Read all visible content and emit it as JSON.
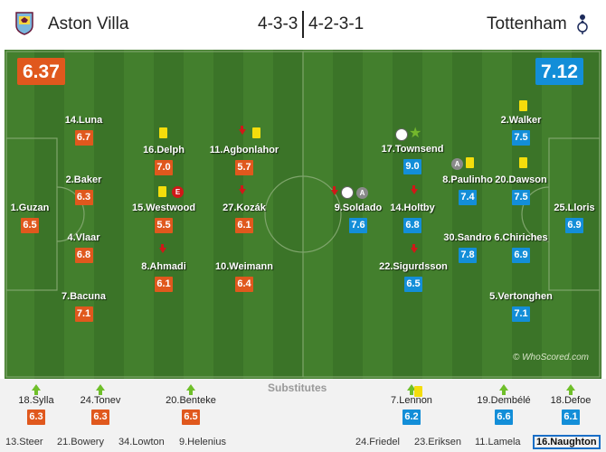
{
  "header": {
    "home_team": "Aston Villa",
    "away_team": "Tottenham",
    "home_formation": "4-3-3",
    "away_formation": "4-2-3-1"
  },
  "ratings": {
    "home": "6.37",
    "away": "7.12"
  },
  "colors": {
    "home": "#e0581d",
    "away": "#138ed8",
    "pitch": "#3f7a2a",
    "yellow_card": "#f4dd0c"
  },
  "watermark": "© WhoScored.com",
  "home_players": [
    {
      "name": "14.Luna",
      "rating": "6.7"
    },
    {
      "name": "2.Baker",
      "rating": "6.3"
    },
    {
      "name": "1.Guzan",
      "rating": "6.5"
    },
    {
      "name": "4.Vlaar",
      "rating": "6.8"
    },
    {
      "name": "7.Bacuna",
      "rating": "7.1"
    },
    {
      "name": "16.Delph",
      "rating": "7.0"
    },
    {
      "name": "15.Westwood",
      "rating": "5.5"
    },
    {
      "name": "8.Ahmadi",
      "rating": "6.1"
    },
    {
      "name": "11.Agbonlahor",
      "rating": "5.7"
    },
    {
      "name": "27.Kozák",
      "rating": "6.1"
    },
    {
      "name": "10.Weimann",
      "rating": "6.4"
    }
  ],
  "away_players": [
    {
      "name": "9.Soldado",
      "rating": "7.6"
    },
    {
      "name": "17.Townsend",
      "rating": "9.0"
    },
    {
      "name": "14.Holtby",
      "rating": "6.8"
    },
    {
      "name": "22.Sigurdsson",
      "rating": "6.5"
    },
    {
      "name": "8.Paulinho",
      "rating": "7.4"
    },
    {
      "name": "30.Sandro",
      "rating": "7.8"
    },
    {
      "name": "2.Walker",
      "rating": "7.5"
    },
    {
      "name": "20.Dawson",
      "rating": "7.5"
    },
    {
      "name": "6.Chiriches",
      "rating": "6.9"
    },
    {
      "name": "5.Vertonghen",
      "rating": "7.1"
    },
    {
      "name": "25.Lloris",
      "rating": "6.9"
    }
  ],
  "substitutes": {
    "title": "Substitutes",
    "home_used": [
      {
        "name": "18.Sylla",
        "rating": "6.3"
      },
      {
        "name": "24.Tonev",
        "rating": "6.3"
      },
      {
        "name": "20.Benteke",
        "rating": "6.5"
      }
    ],
    "away_used": [
      {
        "name": "7.Lennon",
        "rating": "6.2"
      },
      {
        "name": "19.Dembélé",
        "rating": "6.6"
      },
      {
        "name": "18.Defoe",
        "rating": "6.1"
      }
    ],
    "home_unused": [
      "13.Steer",
      "21.Bowery",
      "34.Lowton",
      "9.Helenius"
    ],
    "away_unused": [
      "24.Friedel",
      "23.Eriksen",
      "11.Lamela",
      "16.Naughton"
    ]
  }
}
